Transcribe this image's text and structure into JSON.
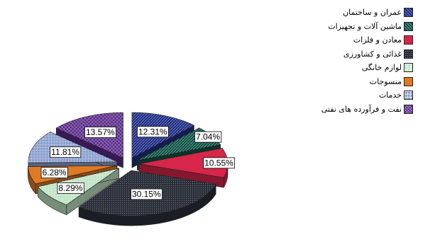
{
  "chart_data": {
    "type": "pie",
    "style": "3d-exploded",
    "legend_position": "top-right",
    "series": [
      {
        "name": "عمران و ساختمان",
        "value": 12.31,
        "label": "12.31%",
        "color": "#1f2d86",
        "pattern": "diagonal"
      },
      {
        "name": "ماشین آلات و تجهیزات",
        "value": 7.04,
        "label": "7.04%",
        "color": "#0e5346",
        "pattern": "diagonal"
      },
      {
        "name": "معادن و فلزات",
        "value": 10.55,
        "label": "10.55%",
        "color": "#d8254a",
        "pattern": "solid"
      },
      {
        "name": "غذائی و کشاورزی",
        "value": 30.15,
        "label": "30.15%",
        "color": "#2a2f3a",
        "pattern": "dots"
      },
      {
        "name": "لوازم خانگی",
        "value": 8.29,
        "label": "8.29%",
        "color": "#bfe3c4",
        "pattern": "grid"
      },
      {
        "name": "منسوجات",
        "value": 6.28,
        "label": "6.28%",
        "color": "#e07a22",
        "pattern": "solid"
      },
      {
        "name": "خدمات",
        "value": 11.81,
        "label": "11.81%",
        "color": "#8a9fd0",
        "pattern": "grid"
      },
      {
        "name": "نفت و فرآورده های نفتی",
        "value": 13.57,
        "label": "13.57%",
        "color": "#5a2a8a",
        "pattern": "diamond"
      }
    ]
  }
}
